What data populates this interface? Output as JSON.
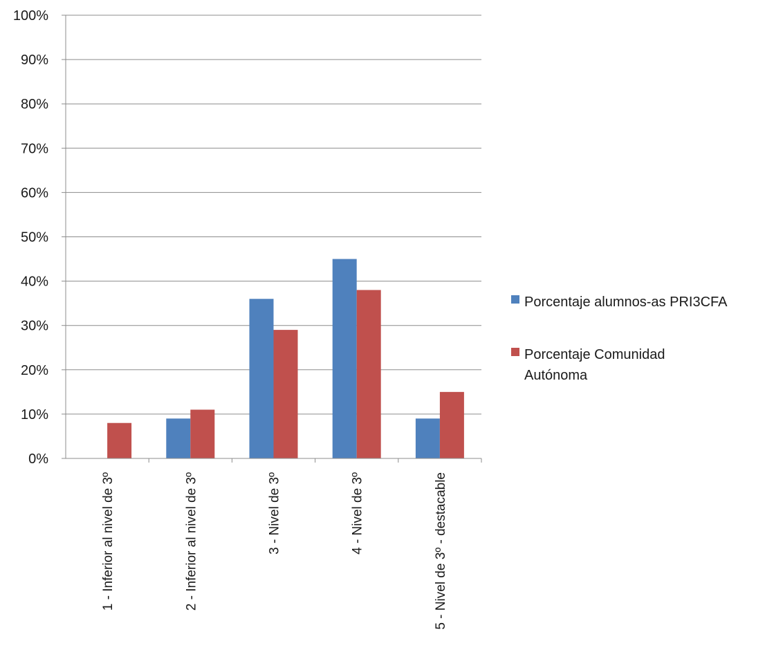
{
  "chart_data": {
    "type": "bar",
    "categories": [
      "1 - Inferior al nivel de 3º",
      "2 - Inferior al nivel de 3º",
      "3 - Nivel de 3º",
      "4 - Nivel de 3º",
      "5 - Nivel de 3º - destacable"
    ],
    "series": [
      {
        "name": "Porcentaje alumnos-as PRI3CFA",
        "values": [
          0,
          9,
          36,
          45,
          9
        ],
        "color": "#4F81BD"
      },
      {
        "name": "Porcentaje Comunidad Autónoma",
        "values": [
          8,
          11,
          29,
          38,
          15
        ],
        "color": "#C0504D"
      }
    ],
    "yticks": [
      "0%",
      "10%",
      "20%",
      "30%",
      "40%",
      "50%",
      "60%",
      "70%",
      "80%",
      "90%",
      "100%"
    ],
    "ylim": [
      0,
      100
    ],
    "grid": true,
    "legend_position": "right",
    "legend_lines": [
      [
        "Porcentaje alumnos-as PRI3CFA"
      ],
      [
        "Porcentaje Comunidad",
        "Autónoma"
      ]
    ],
    "title": "",
    "xlabel": "",
    "ylabel": ""
  }
}
